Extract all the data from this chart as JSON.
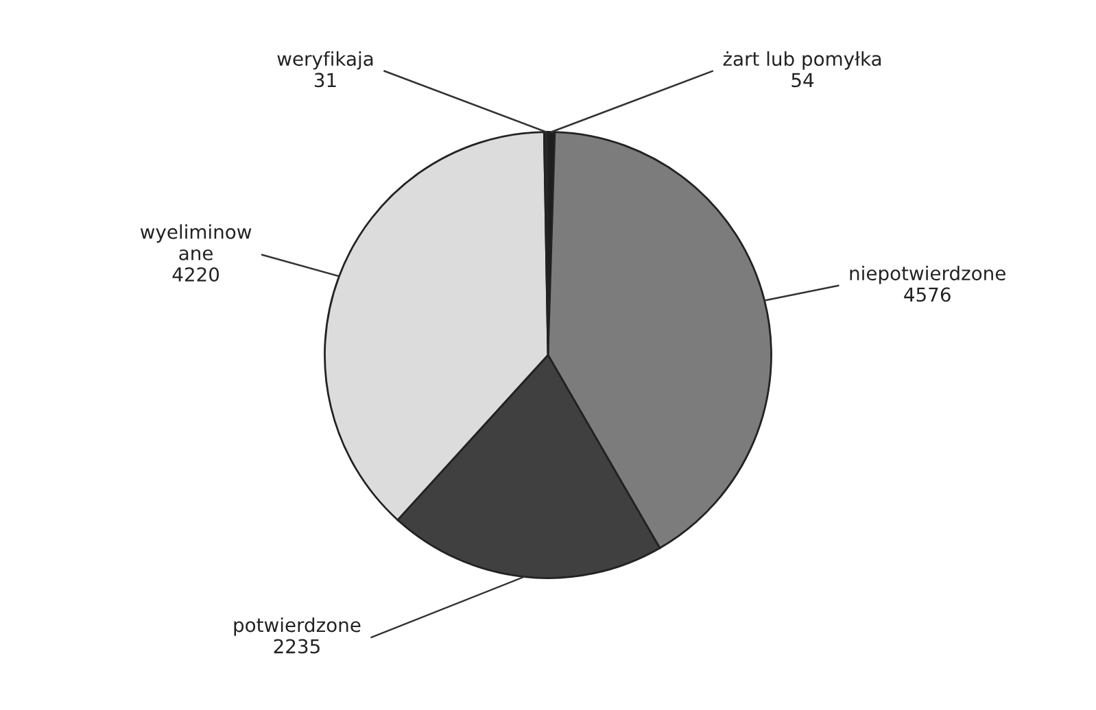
{
  "chart_data": {
    "type": "pie",
    "categories": [
      "żart lub pomyłka",
      "niepotwierdzone",
      "potwierdzone",
      "wyeliminow\nane",
      "weryfikaja"
    ],
    "values": [
      54,
      4576,
      2235,
      4220,
      31
    ],
    "colors": [
      "#1e1e1e",
      "#7c7c7c",
      "#404040",
      "#dcdcdc",
      "#2a2a2a"
    ],
    "data_labels": true
  }
}
